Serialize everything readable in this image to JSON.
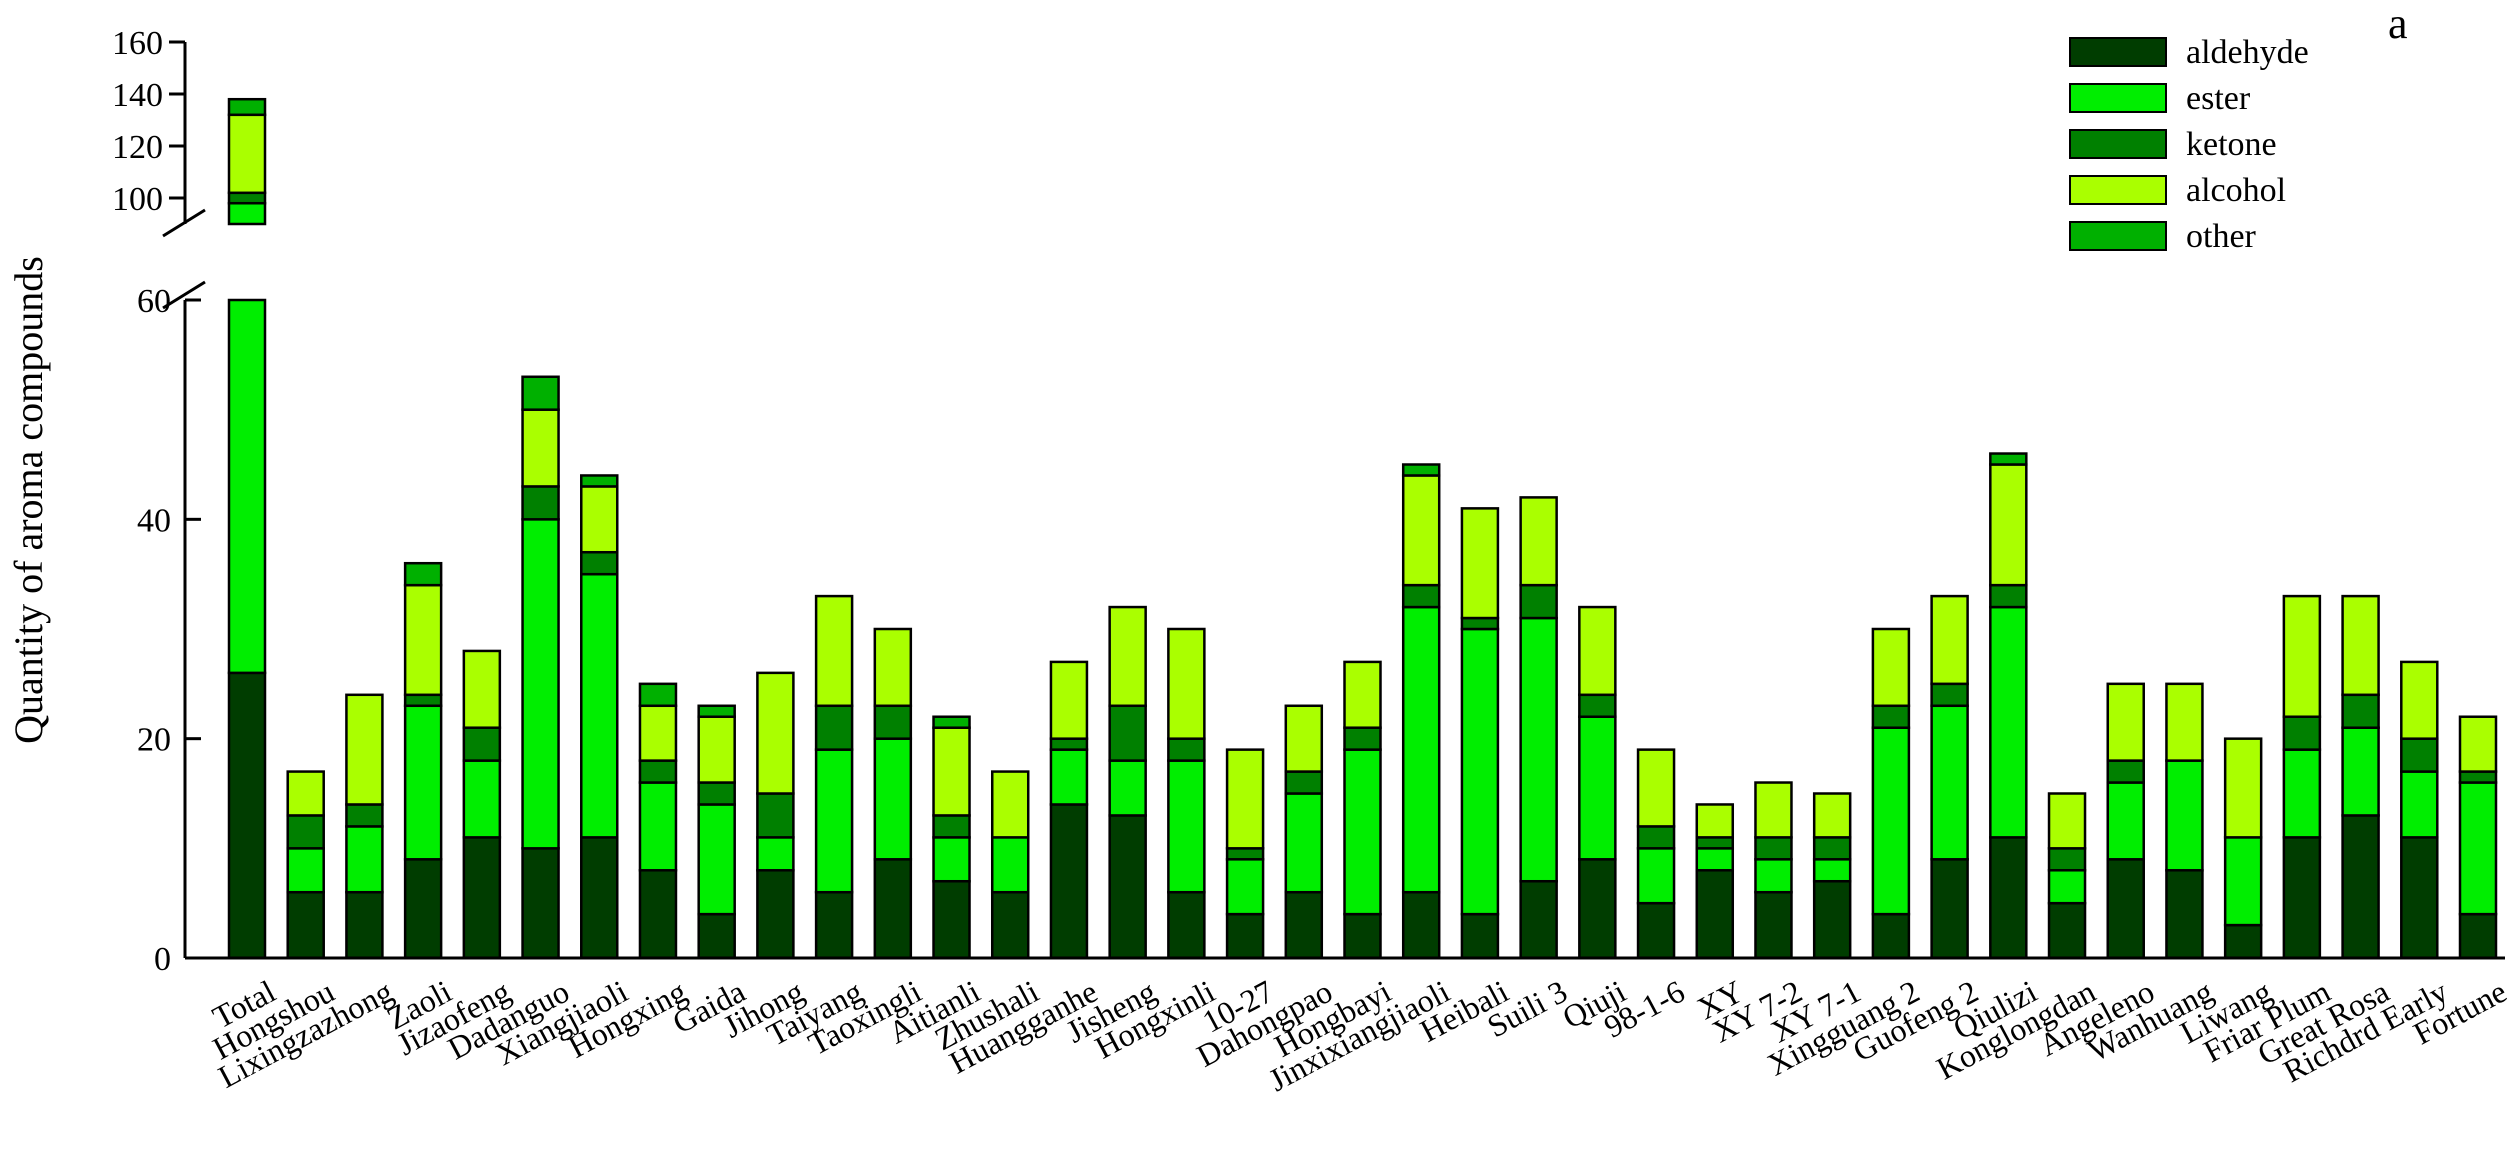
{
  "chart_data": {
    "type": "bar",
    "stacked": true,
    "panel_label": "a",
    "ylabel": "Quantity of aroma compounds",
    "y_axis_break": {
      "lower_range": [
        0,
        60
      ],
      "upper_range": [
        90,
        160
      ]
    },
    "yticks_lower": [
      0,
      20,
      40,
      60
    ],
    "yticks_upper": [
      100,
      120,
      140,
      160
    ],
    "legend_position": "top-right",
    "categories": [
      "Total",
      "Hongshou",
      "Lixingzazhong",
      "Zaoli",
      "Jizaofeng",
      "Dadanguo",
      "Xiangjiaoli",
      "Hongxing",
      "Gaida",
      "Jihong",
      "Taiyang",
      "Taoxingli",
      "Aitianli",
      "Zhushali",
      "Huangganhe",
      "Jisheng",
      "Hongxinli",
      "10-27",
      "Dahongpao",
      "Hongbayi",
      "Jinxixiangjiaoli",
      "Heibali",
      "Suili 3",
      "Qiuji",
      "98-1-6",
      "XY",
      "XY 7-2",
      "XY 7-1",
      "Xingguang 2",
      "Guofeng 2",
      "Qiulizi",
      "Konglongdan",
      "Angeleno",
      "Wanhuang",
      "Liwang",
      "Friar Plum",
      "Great Rosa",
      "Richdrd Early",
      "Fortune"
    ],
    "series": [
      {
        "name": "aldehyde",
        "color": "#003d00",
        "values": [
          26,
          6,
          6,
          9,
          11,
          10,
          11,
          8,
          4,
          8,
          6,
          9,
          7,
          6,
          14,
          13,
          6,
          4,
          6,
          4,
          6,
          4,
          7,
          9,
          5,
          8,
          6,
          7,
          4,
          9,
          11,
          5,
          9,
          8,
          3,
          11,
          13,
          11,
          4
        ]
      },
      {
        "name": "ester",
        "color": "#00ee00",
        "values": [
          72,
          4,
          6,
          14,
          7,
          30,
          24,
          8,
          10,
          3,
          13,
          11,
          4,
          5,
          5,
          5,
          12,
          5,
          9,
          15,
          26,
          26,
          24,
          13,
          5,
          2,
          3,
          2,
          17,
          14,
          21,
          3,
          7,
          10,
          8,
          8,
          8,
          6,
          12
        ]
      },
      {
        "name": "ketone",
        "color": "#008000",
        "values": [
          4,
          3,
          2,
          1,
          3,
          3,
          2,
          2,
          2,
          4,
          4,
          3,
          2,
          0,
          1,
          5,
          2,
          1,
          2,
          2,
          2,
          1,
          3,
          2,
          2,
          1,
          2,
          2,
          2,
          2,
          2,
          2,
          2,
          0,
          0,
          3,
          3,
          3,
          1
        ]
      },
      {
        "name": "alcohol",
        "color": "#aaff00",
        "values": [
          30,
          4,
          10,
          10,
          7,
          7,
          6,
          5,
          6,
          11,
          10,
          7,
          8,
          6,
          7,
          9,
          10,
          9,
          6,
          6,
          10,
          10,
          8,
          8,
          7,
          3,
          5,
          4,
          7,
          8,
          11,
          5,
          7,
          7,
          9,
          11,
          9,
          7,
          5
        ]
      },
      {
        "name": "other",
        "color": "#00b000",
        "values": [
          6,
          0,
          0,
          2,
          0,
          3,
          1,
          2,
          1,
          0,
          0,
          0,
          1,
          0,
          0,
          0,
          0,
          0,
          0,
          0,
          1,
          0,
          0,
          0,
          0,
          0,
          0,
          0,
          0,
          0,
          1,
          0,
          0,
          0,
          0,
          0,
          0,
          0,
          0
        ]
      }
    ]
  }
}
